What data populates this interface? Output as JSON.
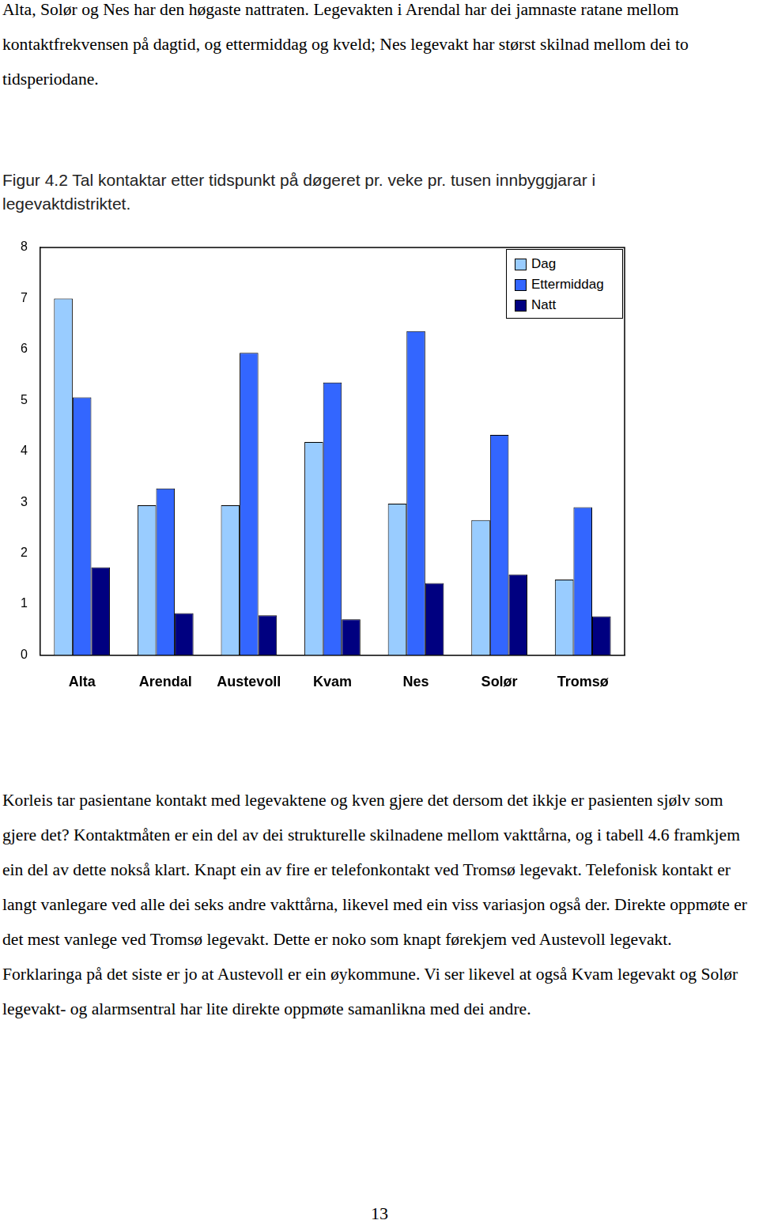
{
  "document": {
    "paragraphs_top": [
      "Alta, Solør og Nes har den høgaste nattraten. Legevakten i Arendal har dei jamnaste ratane mellom kontaktfrekvensen på dagtid, og ettermiddag og kveld; Nes legevakt har størst skilnad mellom dei to tidsperiodane."
    ],
    "caption": "Figur 4.2 Tal kontaktar etter tidspunkt på døgeret pr. veke pr. tusen innbyggjarar i legevaktdistriktet.",
    "paragraphs_bottom": [
      "Korleis tar pasientane kontakt med legevaktene og kven gjere det dersom det ikkje er pasienten sjølv som gjere det? Kontaktmåten er ein del av dei strukturelle skilnadene mellom vakttårna, og i tabell 4.6 framkjem ein del av dette nokså klart. Knapt ein av fire er telefonkontakt ved Tromsø legevakt. Telefonisk kontakt er langt vanlegare ved alle dei seks andre vakttårna, likevel med ein viss variasjon også der. Direkte oppmøte er det mest vanlege ved Tromsø legevakt. Dette er noko som knapt førekjem ved Austevoll legevakt. Forklaringa på det siste er jo at Austevoll er ein øykommune. Vi ser likevel at også Kvam legevakt og Solør legevakt- og alarmsentral har lite direkte oppmøte samanlikna med dei andre."
    ],
    "page_number": 13
  },
  "chart_data": {
    "type": "bar",
    "categories": [
      "Alta",
      "Arendal",
      "Austevoll",
      "Kvam",
      "Nes",
      "Solør",
      "Tromsø"
    ],
    "series": [
      {
        "name": "Dag",
        "color": "#99ccff",
        "values": [
          7.0,
          2.94,
          2.94,
          4.18,
          2.97,
          2.65,
          1.48
        ]
      },
      {
        "name": "Ettermiddag",
        "color": "#3366ff",
        "values": [
          5.06,
          3.27,
          5.93,
          5.35,
          6.36,
          4.32,
          2.9
        ]
      },
      {
        "name": "Natt",
        "color": "#000080",
        "values": [
          1.72,
          0.82,
          0.78,
          0.7,
          1.41,
          1.58,
          0.76
        ]
      }
    ],
    "ylim": [
      0,
      8
    ],
    "yticks": [
      0,
      1,
      2,
      3,
      4,
      5,
      6,
      7,
      8
    ],
    "grid": false,
    "legend": "upper right"
  }
}
